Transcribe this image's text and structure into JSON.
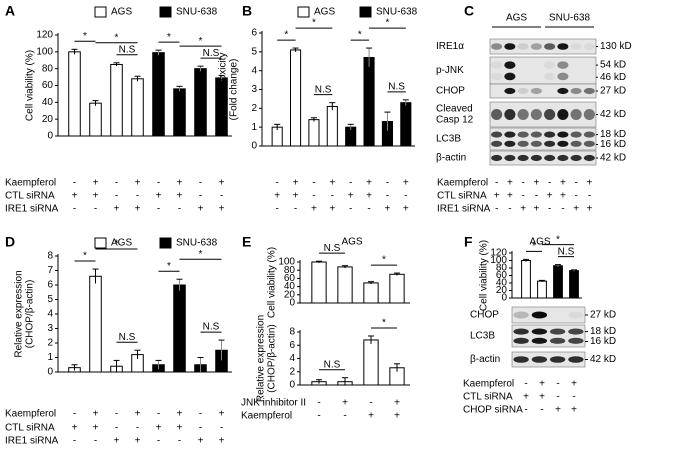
{
  "chart_data": [
    {
      "type": "bar",
      "panel_label": "A",
      "ylabel": [
        "Cell viability (%)"
      ],
      "ylim": [
        0,
        120
      ],
      "yticks": [
        0,
        20,
        40,
        60,
        80,
        100,
        120
      ],
      "values": [
        100,
        39,
        85,
        68,
        99,
        56,
        80,
        69
      ],
      "errors": [
        3,
        3,
        2,
        3,
        3,
        3,
        3,
        3
      ],
      "colors": [
        "#ffffff",
        "#ffffff",
        "#ffffff",
        "#ffffff",
        "#000000",
        "#000000",
        "#000000",
        "#000000"
      ],
      "legend": [
        {
          "name": "AGS",
          "color": "#ffffff"
        },
        {
          "name": "SNU-638",
          "color": "#000000"
        }
      ],
      "annotations": [
        "*",
        "*",
        "N.S",
        "*",
        "*",
        "N.S"
      ],
      "conditions": [
        {
          "name": "Kaempferol",
          "signs": [
            "-",
            "+",
            "-",
            "+",
            "-",
            "+",
            "-",
            "+"
          ]
        },
        {
          "name": "CTL siRNA",
          "signs": [
            "+",
            "+",
            "-",
            "-",
            "+",
            "+",
            "-",
            "-"
          ]
        },
        {
          "name": "IRE1 siRNA",
          "signs": [
            "-",
            "-",
            "+",
            "+",
            "-",
            "-",
            "+",
            "+"
          ]
        }
      ]
    },
    {
      "type": "bar",
      "panel_label": "B",
      "ylabel": [
        "LDH Cytotoxicity",
        "(Fold change)"
      ],
      "ylim": [
        0,
        6
      ],
      "yticks": [
        0,
        1,
        2,
        3,
        4,
        5,
        6
      ],
      "values": [
        1.0,
        5.1,
        1.4,
        2.1,
        1.0,
        4.7,
        1.3,
        2.3
      ],
      "errors": [
        0.15,
        0.1,
        0.1,
        0.2,
        0.15,
        0.5,
        0.5,
        0.15
      ],
      "colors": [
        "#ffffff",
        "#ffffff",
        "#ffffff",
        "#ffffff",
        "#000000",
        "#000000",
        "#000000",
        "#000000"
      ],
      "legend": [
        {
          "name": "AGS",
          "color": "#ffffff"
        },
        {
          "name": "SNU-638",
          "color": "#000000"
        }
      ],
      "annotations": [
        "*",
        "*",
        "N.S",
        "*",
        "*",
        "N.S"
      ],
      "conditions": [
        {
          "signs": [
            "-",
            "+",
            "-",
            "+",
            "-",
            "+",
            "-",
            "+"
          ]
        },
        {
          "signs": [
            "+",
            "+",
            "-",
            "-",
            "+",
            "+",
            "-",
            "-"
          ]
        },
        {
          "signs": [
            "-",
            "-",
            "+",
            "+",
            "-",
            "-",
            "+",
            "+"
          ]
        }
      ]
    },
    {
      "type": "bar",
      "panel_label": "D",
      "ylabel": [
        "Relative expression",
        "(CHOP/β-actin)"
      ],
      "ylim": [
        0,
        8
      ],
      "yticks": [
        0,
        1,
        2,
        3,
        4,
        5,
        6,
        7,
        8
      ],
      "values": [
        0.3,
        6.6,
        0.4,
        1.2,
        0.5,
        6.0,
        0.5,
        1.5
      ],
      "errors": [
        0.2,
        0.5,
        0.4,
        0.3,
        0.3,
        0.4,
        0.5,
        0.7
      ],
      "colors": [
        "#ffffff",
        "#ffffff",
        "#ffffff",
        "#ffffff",
        "#000000",
        "#000000",
        "#000000",
        "#000000"
      ],
      "legend": [
        {
          "name": "AGS",
          "color": "#ffffff"
        },
        {
          "name": "SNU-638",
          "color": "#000000"
        }
      ],
      "annotations": [
        "*",
        "*",
        "N.S",
        "*",
        "*",
        "N.S"
      ],
      "conditions": [
        {
          "name": "Kaempferol",
          "signs": [
            "-",
            "+",
            "-",
            "+",
            "-",
            "+",
            "-",
            "+"
          ]
        },
        {
          "name": "CTL siRNA",
          "signs": [
            "+",
            "+",
            "-",
            "-",
            "+",
            "+",
            "-",
            "-"
          ]
        },
        {
          "name": "IRE1 siRNA",
          "signs": [
            "-",
            "-",
            "+",
            "+",
            "-",
            "-",
            "+",
            "+"
          ]
        }
      ]
    },
    {
      "type": "bar",
      "panel_label": "E",
      "title": "AGS",
      "ylabel": [
        "Cell viability (%)"
      ],
      "ylim": [
        0,
        100
      ],
      "yticks": [
        0,
        20,
        40,
        60,
        80,
        100
      ],
      "values": [
        100,
        88,
        49,
        70
      ],
      "errors": [
        2,
        3,
        3,
        3
      ],
      "colors": [
        "#ffffff",
        "#ffffff",
        "#ffffff",
        "#ffffff"
      ],
      "annotations": [
        "N.S",
        "*"
      ]
    },
    {
      "type": "bar",
      "ylabel": [
        "Relative expression",
        "(CHOP/β-actin)"
      ],
      "ylim": [
        0,
        8
      ],
      "yticks": [
        0,
        2,
        4,
        6,
        8
      ],
      "values": [
        0.5,
        0.5,
        6.8,
        2.6
      ],
      "errors": [
        0.3,
        0.6,
        0.6,
        0.6
      ],
      "colors": [
        "#ffffff",
        "#ffffff",
        "#ffffff",
        "#ffffff"
      ],
      "annotations": [
        "N.S",
        "*"
      ],
      "conditions": [
        {
          "name": "JNK inhibitor II",
          "signs": [
            "-",
            "+",
            "-",
            "+"
          ]
        },
        {
          "name": "Kaempferol",
          "signs": [
            "-",
            "-",
            "+",
            "+"
          ]
        }
      ]
    },
    {
      "type": "bar",
      "panel_label": "F",
      "title": "AGS",
      "ylabel": [
        "Cell viability (%)"
      ],
      "ylim": [
        0,
        120
      ],
      "yticks": [
        0,
        20,
        40,
        60,
        80,
        100,
        120
      ],
      "values": [
        100,
        45,
        86,
        73
      ],
      "errors": [
        3,
        2,
        3,
        2
      ],
      "colors": [
        "#ffffff",
        "#ffffff",
        "#000000",
        "#000000"
      ],
      "annotations": [
        "*",
        "*",
        "N.S"
      ],
      "conditions": [
        {
          "name": "Kaempferol",
          "signs": [
            "-",
            "+",
            "-",
            "+"
          ]
        },
        {
          "name": "CTL siRNA",
          "signs": [
            "+",
            "+",
            "-",
            "-"
          ]
        },
        {
          "name": "CHOP siRNA",
          "signs": [
            "-",
            "-",
            "+",
            "+"
          ]
        }
      ]
    }
  ],
  "blots": [
    {
      "panel_label": "C",
      "headers": [
        "AGS",
        "SNU-638"
      ],
      "rows": [
        {
          "name": [
            "IRE1α"
          ],
          "sizes": [
            "130 kD"
          ]
        },
        {
          "name": [
            "p-JNK"
          ],
          "sizes": [
            "54 kD",
            "46 kD"
          ]
        },
        {
          "name": [
            "CHOP"
          ],
          "sizes": [
            "27 kD"
          ]
        },
        {
          "name": [
            "Cleaved",
            "Casp 12"
          ],
          "sizes": [
            "42 kD"
          ]
        },
        {
          "name": [
            "LC3B"
          ],
          "sizes": [
            "18 kD",
            "16 kD"
          ]
        },
        {
          "name": [
            "β-actin"
          ],
          "sizes": [
            "42 kD"
          ]
        }
      ],
      "conditions": [
        {
          "name": "Kaempferol",
          "signs": [
            "-",
            "+",
            "-",
            "+",
            "-",
            "+",
            "-",
            "+"
          ]
        },
        {
          "name": "CTL siRNA",
          "signs": [
            "+",
            "+",
            "-",
            "-",
            "+",
            "+",
            "-",
            "-"
          ]
        },
        {
          "name": "IRE1 siRNA",
          "signs": [
            "-",
            "-",
            "+",
            "+",
            "-",
            "-",
            "+",
            "+"
          ]
        }
      ]
    },
    {
      "rows": [
        {
          "name": [
            "CHOP"
          ],
          "sizes": [
            "27 kD"
          ]
        },
        {
          "name": [
            "LC3B"
          ],
          "sizes": [
            "18 kD",
            "16 kD"
          ]
        },
        {
          "name": [
            "β-actin"
          ],
          "sizes": [
            "42 kD"
          ]
        }
      ]
    }
  ]
}
